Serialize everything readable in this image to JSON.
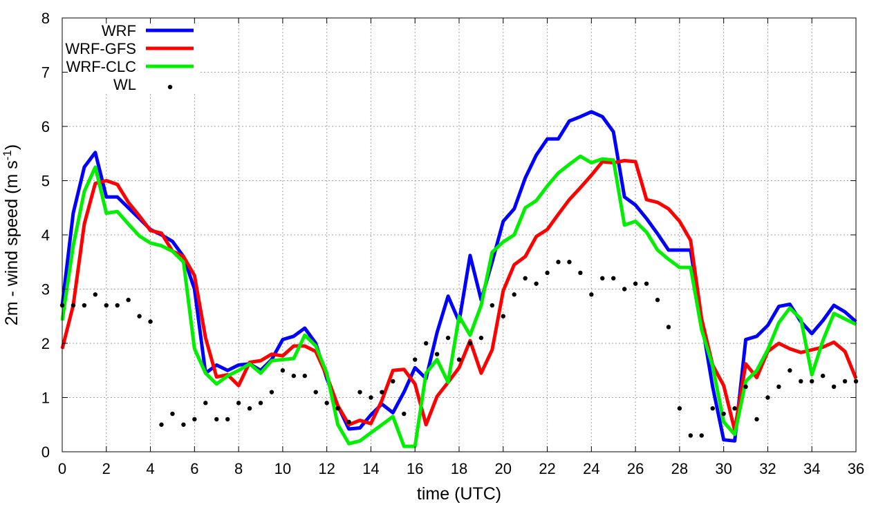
{
  "chart_data": {
    "type": "line",
    "xlabel": "time (UTC)",
    "ylabel": {
      "main": "2m - wind speed  (m s",
      "superscript": "-1",
      "close": ")"
    },
    "xlim": [
      0,
      36
    ],
    "ylim": [
      0,
      8
    ],
    "xticks": [
      "0",
      "2",
      "4",
      "6",
      "8",
      "10",
      "12",
      "14",
      "16",
      "18",
      "20",
      "22",
      "24",
      "26",
      "28",
      "30",
      "32",
      "34",
      "36"
    ],
    "yticks": [
      "0",
      "1",
      "2",
      "3",
      "4",
      "5",
      "6",
      "7",
      "8"
    ],
    "grid": true,
    "legend_position": "top-left",
    "series": [
      {
        "name": "WRF",
        "kind": "line",
        "color": "#0000ff",
        "x": [
          0,
          0.5,
          1,
          1.5,
          2,
          2.5,
          3,
          3.5,
          4,
          4.5,
          5,
          5.5,
          6,
          6.5,
          7,
          7.5,
          8,
          8.5,
          9,
          9.5,
          10,
          10.5,
          11,
          11.5,
          12,
          12.5,
          13,
          13.5,
          14,
          14.5,
          15,
          15.5,
          16,
          16.5,
          17,
          17.5,
          18,
          18.5,
          19,
          19.5,
          20,
          20.5,
          21,
          21.5,
          22,
          22.5,
          23,
          23.5,
          24,
          24.5,
          25,
          25.5,
          26,
          26.5,
          27,
          27.5,
          28,
          28.5,
          29,
          29.5,
          30,
          30.5,
          31,
          31.5,
          32,
          32.5,
          33,
          33.5,
          34,
          34.5,
          35,
          35.5,
          36
        ],
        "y": [
          2.7,
          4.4,
          5.25,
          5.52,
          4.7,
          4.7,
          4.5,
          4.3,
          4.1,
          4.0,
          3.88,
          3.6,
          3.0,
          1.45,
          1.6,
          1.5,
          1.6,
          1.62,
          1.5,
          1.7,
          2.07,
          2.13,
          2.28,
          2.0,
          1.35,
          0.85,
          0.42,
          0.44,
          0.68,
          0.88,
          0.72,
          1.1,
          1.55,
          1.35,
          2.2,
          2.87,
          2.4,
          3.62,
          2.8,
          3.5,
          4.25,
          4.48,
          5.05,
          5.47,
          5.77,
          5.77,
          6.1,
          6.18,
          6.27,
          6.18,
          5.9,
          4.7,
          4.55,
          4.3,
          4.02,
          3.72,
          3.72,
          3.72,
          2.4,
          1.2,
          0.22,
          0.2,
          2.07,
          2.13,
          2.33,
          2.68,
          2.72,
          2.4,
          2.18,
          2.42,
          2.7,
          2.58,
          2.4
        ]
      },
      {
        "name": "WRF-GFS",
        "kind": "line",
        "color": "#ff0000",
        "x": [
          0,
          0.5,
          1,
          1.5,
          2,
          2.5,
          3,
          3.5,
          4,
          4.5,
          5,
          5.5,
          6,
          6.5,
          7,
          7.5,
          8,
          8.5,
          9,
          9.5,
          10,
          10.5,
          11,
          11.5,
          12,
          12.5,
          13,
          13.5,
          14,
          14.5,
          15,
          15.5,
          16,
          16.5,
          17,
          17.5,
          18,
          18.5,
          19,
          19.5,
          20,
          20.5,
          21,
          21.5,
          22,
          22.5,
          23,
          23.5,
          24,
          24.5,
          25,
          25.5,
          26,
          26.5,
          27,
          27.5,
          28,
          28.5,
          29,
          29.5,
          30,
          30.5,
          31,
          31.5,
          32,
          32.5,
          33,
          33.5,
          34,
          34.5,
          35,
          35.5,
          36
        ],
        "y": [
          1.9,
          2.7,
          4.2,
          4.95,
          5.0,
          4.93,
          4.6,
          4.35,
          4.08,
          4.03,
          3.7,
          3.6,
          3.25,
          2.1,
          1.38,
          1.42,
          1.22,
          1.65,
          1.68,
          1.8,
          1.77,
          1.95,
          1.95,
          1.85,
          1.4,
          0.85,
          0.5,
          0.58,
          0.52,
          0.95,
          1.5,
          1.52,
          1.25,
          0.5,
          1.02,
          1.28,
          1.55,
          2.05,
          1.45,
          1.88,
          2.97,
          3.45,
          3.6,
          3.97,
          4.1,
          4.38,
          4.65,
          4.87,
          5.1,
          5.35,
          5.33,
          5.37,
          5.35,
          4.65,
          4.6,
          4.48,
          4.25,
          3.9,
          2.45,
          1.6,
          1.22,
          0.4,
          1.62,
          1.37,
          1.85,
          2.0,
          1.9,
          1.83,
          1.88,
          1.93,
          2.02,
          1.85,
          1.35
        ]
      },
      {
        "name": "WRF-CLC",
        "kind": "line",
        "color": "#00ee00",
        "x": [
          0,
          0.5,
          1,
          1.5,
          2,
          2.5,
          3,
          3.5,
          4,
          4.5,
          5,
          5.5,
          6,
          6.5,
          7,
          7.5,
          8,
          8.5,
          9,
          9.5,
          10,
          10.5,
          11,
          11.5,
          12,
          12.5,
          13,
          13.5,
          14,
          14.5,
          15,
          15.5,
          16,
          16.5,
          17,
          17.5,
          18,
          18.5,
          19,
          19.5,
          20,
          20.5,
          21,
          21.5,
          22,
          22.5,
          23,
          23.5,
          24,
          24.5,
          25,
          25.5,
          26,
          26.5,
          27,
          27.5,
          28,
          28.5,
          29,
          29.5,
          30,
          30.5,
          31,
          31.5,
          32,
          32.5,
          33,
          33.5,
          34,
          34.5,
          35,
          35.5,
          36
        ],
        "y": [
          2.42,
          3.8,
          4.8,
          5.25,
          4.4,
          4.43,
          4.2,
          3.98,
          3.85,
          3.8,
          3.7,
          3.5,
          1.9,
          1.45,
          1.25,
          1.4,
          1.5,
          1.62,
          1.45,
          1.68,
          1.7,
          1.72,
          2.15,
          1.95,
          1.45,
          0.5,
          0.15,
          0.2,
          0.35,
          0.5,
          0.65,
          0.1,
          0.1,
          1.45,
          1.7,
          1.28,
          2.5,
          2.15,
          2.7,
          3.68,
          3.87,
          4.0,
          4.5,
          4.63,
          4.9,
          5.14,
          5.3,
          5.45,
          5.33,
          5.4,
          5.38,
          4.18,
          4.25,
          4.05,
          3.72,
          3.55,
          3.4,
          3.4,
          2.25,
          1.58,
          0.55,
          0.32,
          1.3,
          1.5,
          1.88,
          2.38,
          2.65,
          2.45,
          1.42,
          2.05,
          2.55,
          2.45,
          2.35
        ]
      },
      {
        "name": "WL",
        "kind": "points",
        "color": "#000000",
        "x": [
          0,
          0.5,
          1,
          1.5,
          2,
          2.5,
          3,
          3.5,
          4,
          4.5,
          5,
          5.5,
          6,
          6.5,
          7,
          7.5,
          8,
          8.5,
          9,
          9.5,
          10,
          10.5,
          11,
          11.5,
          12,
          12.5,
          13,
          13.5,
          14,
          14.5,
          15,
          15.5,
          16,
          16.5,
          17,
          17.5,
          18,
          18.5,
          19,
          19.5,
          20,
          20.5,
          21,
          21.5,
          22,
          22.5,
          23,
          23.5,
          24,
          24.5,
          25,
          25.5,
          26,
          26.5,
          27,
          27.5,
          28,
          28.5,
          29,
          29.5,
          30,
          30.5,
          31,
          31.5,
          32,
          32.5,
          33,
          33.5,
          34,
          34.5,
          35,
          35.5,
          36
        ],
        "y": [
          2.7,
          2.7,
          2.7,
          2.9,
          2.7,
          2.7,
          2.8,
          2.5,
          2.4,
          0.5,
          0.7,
          0.5,
          0.6,
          0.9,
          0.6,
          0.6,
          0.9,
          0.8,
          0.9,
          1.1,
          1.5,
          1.4,
          1.4,
          1.1,
          0.9,
          0.8,
          0.55,
          1.1,
          1.0,
          1.1,
          1.3,
          0.7,
          1.7,
          2.0,
          1.8,
          2.1,
          1.7,
          2.0,
          2.1,
          2.7,
          2.5,
          2.9,
          3.2,
          3.1,
          3.3,
          3.5,
          3.5,
          3.3,
          2.9,
          3.2,
          3.2,
          3.0,
          3.1,
          3.1,
          2.8,
          2.3,
          0.8,
          0.3,
          0.3,
          0.8,
          0.7,
          0.8,
          1.2,
          0.6,
          1.0,
          1.2,
          1.5,
          1.3,
          1.3,
          1.4,
          1.2,
          1.3,
          1.3
        ]
      }
    ]
  }
}
